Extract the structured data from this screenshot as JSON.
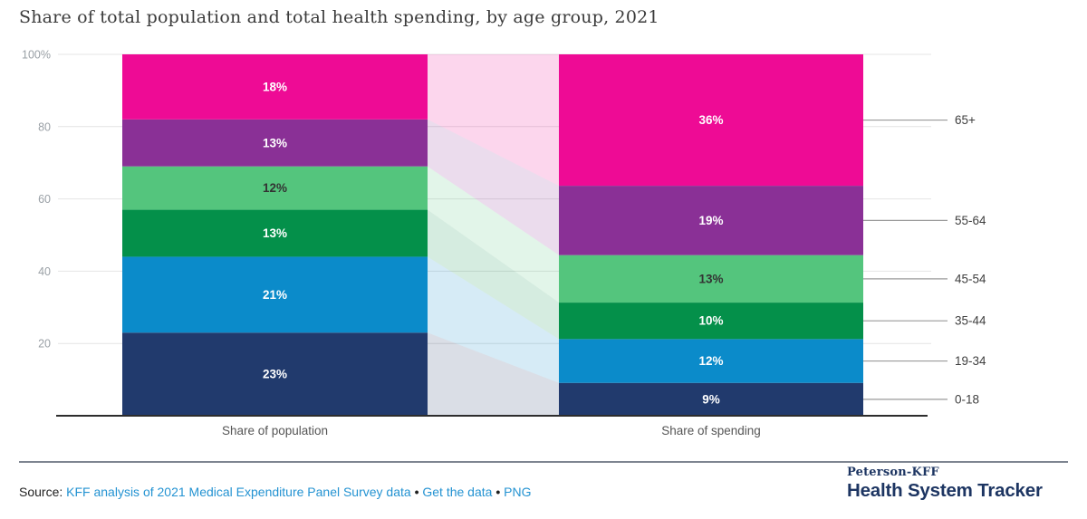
{
  "title": "Share of total population and total health spending, by age group, 2021",
  "chart_data": {
    "type": "bar",
    "subtype": "stacked-100pct-with-flow-ribbons",
    "categories": [
      "Share of population",
      "Share of spending"
    ],
    "series": [
      {
        "name": "0-18",
        "color": "#213a6d",
        "label_color": "#ffffff",
        "values": {
          "population": 23,
          "spending": 9
        }
      },
      {
        "name": "19-34",
        "color": "#0b8bca",
        "label_color": "#ffffff",
        "values": {
          "population": 21,
          "spending": 12
        }
      },
      {
        "name": "35-44",
        "color": "#04904a",
        "label_color": "#ffffff",
        "values": {
          "population": 13,
          "spending": 10
        }
      },
      {
        "name": "45-54",
        "color": "#54c57d",
        "label_color": "#333333",
        "values": {
          "population": 12,
          "spending": 13
        }
      },
      {
        "name": "55-64",
        "color": "#8a3096",
        "label_color": "#ffffff",
        "values": {
          "population": 13,
          "spending": 19
        }
      },
      {
        "name": "65+",
        "color": "#ee0b95",
        "label_color": "#ffffff",
        "values": {
          "population": 18,
          "spending": 36
        }
      }
    ],
    "data_label_format": "{value}%",
    "y_ticks": [
      {
        "label": "100%",
        "value": 100
      },
      {
        "label": "80",
        "value": 80
      },
      {
        "label": "60",
        "value": 60
      },
      {
        "label": "40",
        "value": 40
      },
      {
        "label": "20",
        "value": 20
      }
    ],
    "ylim": [
      0,
      100
    ],
    "grid": true,
    "gridline_color": "#e4e4e4",
    "axis_line_color": "#2d2d2d",
    "tick_line_color": "#9a9a9a",
    "y_tick_label_color": "#9aa0a6",
    "x_label_color": "#555555",
    "right_label_color": "#3f3f3f",
    "flow_opacity": 0.17
  },
  "footer": {
    "source_label": "Source:",
    "separator": "•",
    "links": [
      {
        "text": "KFF analysis of 2021 Medical Expenditure Panel Survey data"
      },
      {
        "text": "Get the data"
      },
      {
        "text": "PNG"
      }
    ],
    "link_color": "#2493d2"
  },
  "logo": {
    "line1": "Peterson-KFF",
    "line2": "Health System Tracker",
    "color": "#1d3562"
  }
}
